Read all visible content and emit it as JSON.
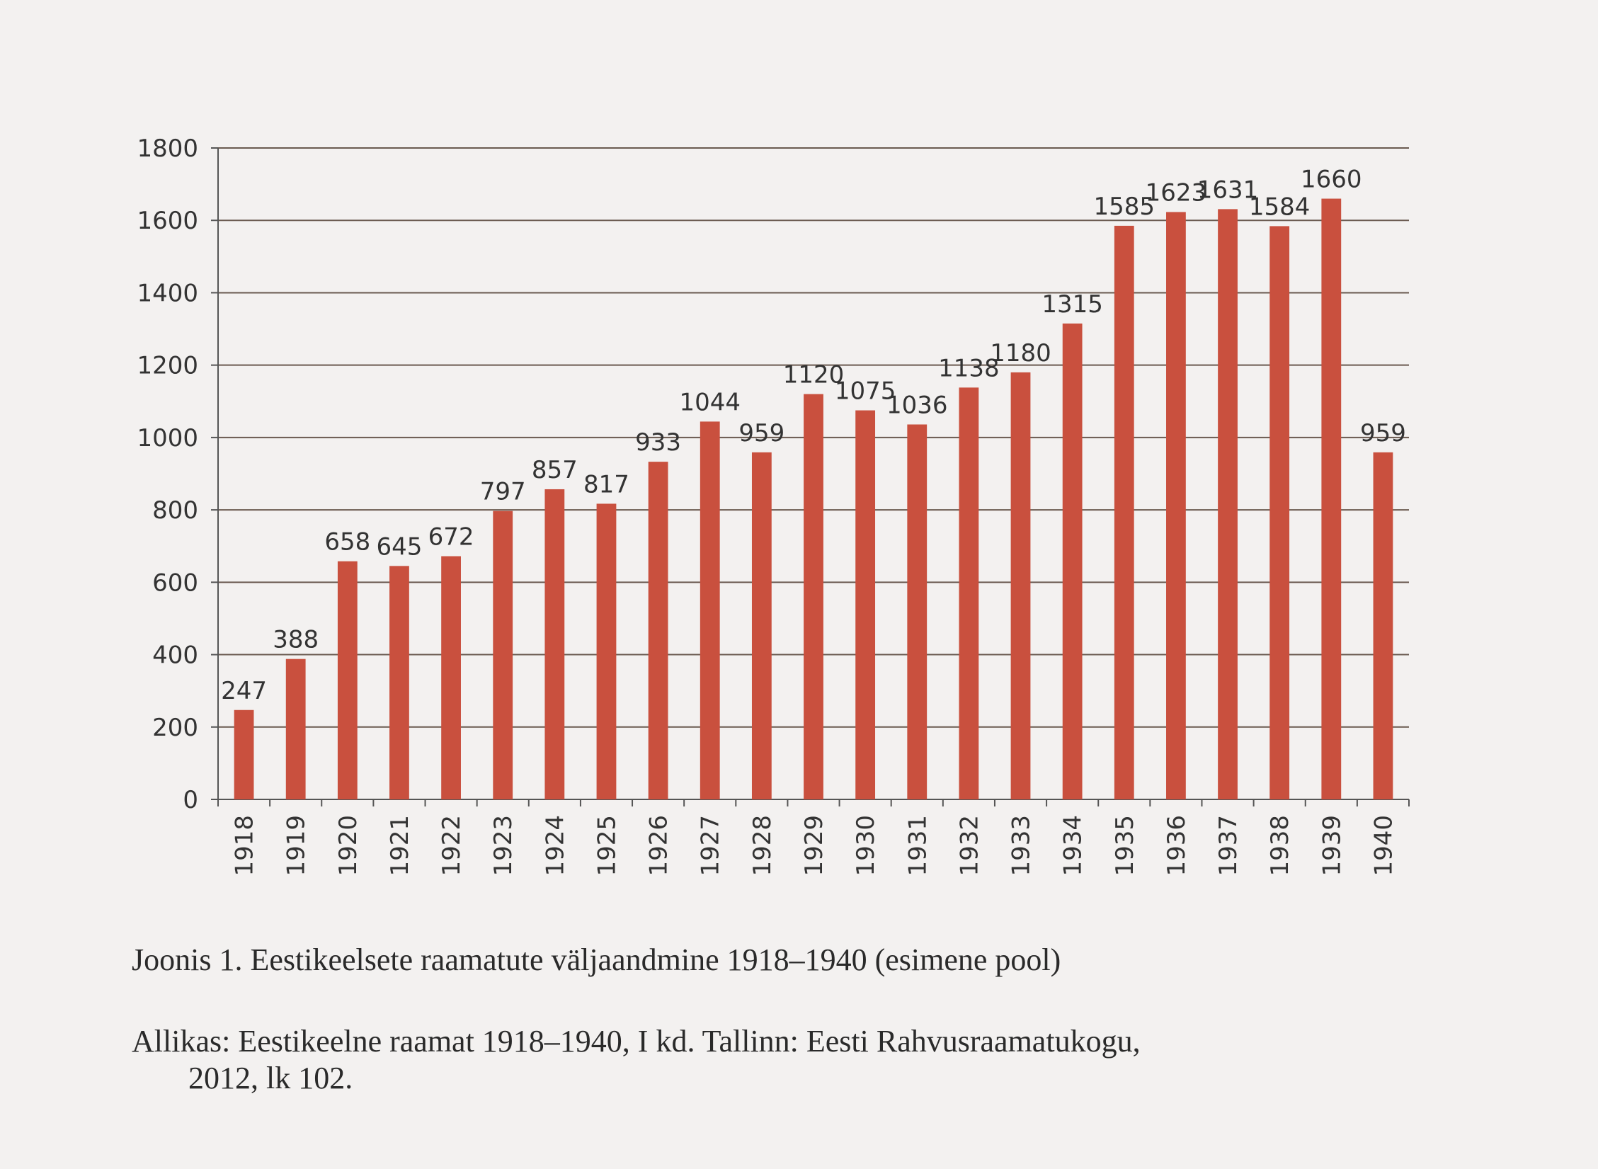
{
  "chart_data": {
    "type": "bar",
    "title": "",
    "xlabel": "",
    "ylabel": "",
    "categories": [
      "1918",
      "1919",
      "1920",
      "1921",
      "1922",
      "1923",
      "1924",
      "1925",
      "1926",
      "1927",
      "1928",
      "1929",
      "1930",
      "1931",
      "1932",
      "1933",
      "1934",
      "1935",
      "1936",
      "1937",
      "1938",
      "1939",
      "1940"
    ],
    "values": [
      247,
      388,
      658,
      645,
      672,
      797,
      857,
      817,
      933,
      1044,
      959,
      1120,
      1075,
      1036,
      1138,
      1180,
      1315,
      1585,
      1623,
      1631,
      1584,
      1660,
      959
    ],
    "ylim": [
      0,
      1800
    ],
    "yticks": [
      0,
      200,
      400,
      600,
      800,
      1000,
      1200,
      1400,
      1600,
      1800
    ],
    "grid": true,
    "bar_color": "#c9503e",
    "data_labels": true
  },
  "caption": {
    "figure": "Joonis 1. Eestikeelsete raamatute väljaandmine 1918–1940 (esimene pool)",
    "source_line1": "Allikas: Eestikeelne raamat 1918–1940, I kd. Tallinn: Eesti Rahvusraamatukogu,",
    "source_line2": "2012, lk 102."
  }
}
